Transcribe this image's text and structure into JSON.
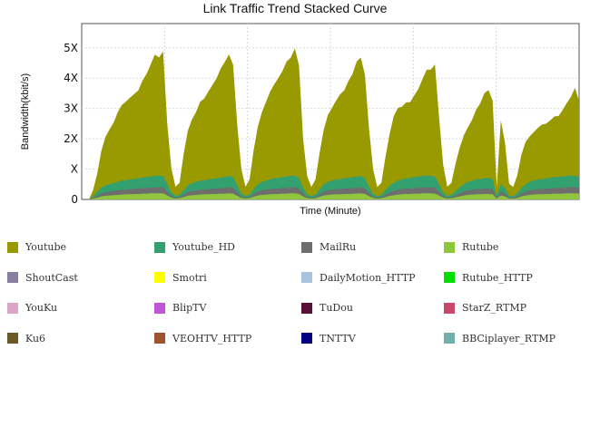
{
  "chart_data": {
    "type": "area",
    "title": "Link Traffic Trend Stacked Curve",
    "xlabel": "Time (Minute)",
    "ylabel": "Bandwidth(kbit/s)",
    "yticks": [
      "0",
      "X",
      "2X",
      "3X",
      "4X",
      "5X"
    ],
    "ylim": [
      0,
      5.8
    ],
    "grid": true,
    "legend_position": "bottom",
    "n_points": 120,
    "series": [
      {
        "name": "Youtube",
        "color": "#999900",
        "values": [
          0.0,
          0.2,
          0.6,
          1.2,
          1.6,
          1.8,
          2.0,
          2.3,
          2.5,
          2.6,
          2.7,
          2.8,
          2.9,
          3.2,
          3.4,
          3.7,
          4.0,
          3.9,
          4.1,
          2.0,
          0.8,
          0.3,
          0.4,
          1.2,
          1.8,
          2.1,
          2.3,
          2.6,
          2.7,
          2.9,
          3.1,
          3.3,
          3.6,
          3.8,
          4.0,
          3.7,
          2.0,
          0.8,
          0.3,
          0.5,
          1.3,
          1.9,
          2.3,
          2.6,
          2.9,
          3.1,
          3.3,
          3.5,
          3.8,
          3.9,
          4.2,
          3.7,
          1.6,
          0.6,
          0.3,
          0.5,
          1.2,
          1.8,
          2.2,
          2.4,
          2.6,
          2.8,
          2.9,
          3.2,
          3.4,
          3.8,
          3.9,
          3.4,
          1.9,
          0.8,
          0.3,
          0.4,
          1.1,
          1.7,
          2.2,
          2.4,
          2.4,
          2.5,
          2.5,
          2.7,
          2.9,
          3.2,
          3.5,
          3.5,
          3.7,
          2.2,
          0.9,
          0.3,
          0.4,
          0.9,
          1.3,
          1.6,
          1.8,
          2.0,
          2.3,
          2.5,
          2.8,
          2.9,
          2.6,
          0.3,
          2.1,
          1.5,
          0.4,
          0.3,
          0.6,
          1.1,
          1.4,
          1.5,
          1.6,
          1.7,
          1.8,
          1.8,
          1.9,
          2.0,
          2.0,
          2.2,
          2.4,
          2.6,
          2.9,
          2.5
        ]
      },
      {
        "name": "Youtube_HD",
        "color": "#33a06f",
        "values": [
          0.0,
          0.05,
          0.12,
          0.2,
          0.22,
          0.25,
          0.26,
          0.28,
          0.3,
          0.3,
          0.32,
          0.33,
          0.34,
          0.35,
          0.36,
          0.37,
          0.38,
          0.38,
          0.38,
          0.25,
          0.12,
          0.06,
          0.07,
          0.15,
          0.22,
          0.26,
          0.28,
          0.3,
          0.3,
          0.32,
          0.33,
          0.34,
          0.35,
          0.36,
          0.38,
          0.36,
          0.22,
          0.1,
          0.06,
          0.08,
          0.16,
          0.24,
          0.28,
          0.3,
          0.32,
          0.34,
          0.35,
          0.36,
          0.37,
          0.38,
          0.38,
          0.35,
          0.18,
          0.08,
          0.05,
          0.08,
          0.16,
          0.24,
          0.28,
          0.3,
          0.32,
          0.33,
          0.34,
          0.35,
          0.36,
          0.37,
          0.38,
          0.35,
          0.2,
          0.09,
          0.05,
          0.07,
          0.15,
          0.22,
          0.27,
          0.3,
          0.32,
          0.34,
          0.35,
          0.36,
          0.37,
          0.38,
          0.38,
          0.38,
          0.37,
          0.25,
          0.12,
          0.06,
          0.07,
          0.14,
          0.2,
          0.25,
          0.28,
          0.3,
          0.32,
          0.33,
          0.34,
          0.35,
          0.32,
          0.05,
          0.25,
          0.18,
          0.06,
          0.05,
          0.1,
          0.18,
          0.24,
          0.28,
          0.3,
          0.32,
          0.33,
          0.34,
          0.35,
          0.36,
          0.37,
          0.37,
          0.38,
          0.38,
          0.38,
          0.36
        ]
      },
      {
        "name": "MailRu",
        "color": "#6e6e6e",
        "values": [
          0.0,
          0.03,
          0.06,
          0.1,
          0.12,
          0.13,
          0.14,
          0.15,
          0.16,
          0.16,
          0.17,
          0.17,
          0.18,
          0.18,
          0.19,
          0.19,
          0.2,
          0.2,
          0.2,
          0.13,
          0.06,
          0.03,
          0.04,
          0.08,
          0.12,
          0.14,
          0.15,
          0.16,
          0.16,
          0.17,
          0.17,
          0.18,
          0.18,
          0.19,
          0.2,
          0.19,
          0.12,
          0.05,
          0.03,
          0.04,
          0.09,
          0.13,
          0.15,
          0.16,
          0.17,
          0.18,
          0.18,
          0.19,
          0.19,
          0.2,
          0.2,
          0.18,
          0.1,
          0.04,
          0.03,
          0.04,
          0.09,
          0.13,
          0.15,
          0.16,
          0.17,
          0.17,
          0.18,
          0.18,
          0.19,
          0.19,
          0.2,
          0.18,
          0.11,
          0.05,
          0.03,
          0.04,
          0.08,
          0.12,
          0.14,
          0.16,
          0.17,
          0.18,
          0.18,
          0.19,
          0.19,
          0.2,
          0.2,
          0.2,
          0.19,
          0.13,
          0.06,
          0.03,
          0.04,
          0.07,
          0.1,
          0.13,
          0.15,
          0.16,
          0.17,
          0.17,
          0.18,
          0.18,
          0.17,
          0.03,
          0.13,
          0.1,
          0.03,
          0.03,
          0.05,
          0.1,
          0.13,
          0.15,
          0.16,
          0.17,
          0.17,
          0.18,
          0.18,
          0.19,
          0.19,
          0.19,
          0.2,
          0.2,
          0.2,
          0.19
        ]
      },
      {
        "name": "Rutube",
        "color": "#8fc63b",
        "values": [
          0.0,
          0.03,
          0.06,
          0.1,
          0.12,
          0.13,
          0.14,
          0.15,
          0.16,
          0.17,
          0.17,
          0.18,
          0.18,
          0.19,
          0.19,
          0.2,
          0.2,
          0.2,
          0.2,
          0.13,
          0.06,
          0.03,
          0.04,
          0.08,
          0.12,
          0.14,
          0.15,
          0.16,
          0.17,
          0.17,
          0.18,
          0.18,
          0.19,
          0.19,
          0.2,
          0.19,
          0.12,
          0.05,
          0.03,
          0.04,
          0.09,
          0.13,
          0.15,
          0.16,
          0.17,
          0.18,
          0.18,
          0.19,
          0.19,
          0.2,
          0.2,
          0.18,
          0.1,
          0.04,
          0.03,
          0.04,
          0.09,
          0.13,
          0.15,
          0.16,
          0.17,
          0.17,
          0.18,
          0.18,
          0.19,
          0.19,
          0.2,
          0.18,
          0.11,
          0.05,
          0.03,
          0.04,
          0.08,
          0.12,
          0.14,
          0.16,
          0.17,
          0.18,
          0.18,
          0.19,
          0.19,
          0.2,
          0.2,
          0.2,
          0.19,
          0.13,
          0.06,
          0.03,
          0.04,
          0.07,
          0.1,
          0.13,
          0.15,
          0.16,
          0.17,
          0.17,
          0.18,
          0.18,
          0.17,
          0.03,
          0.13,
          0.1,
          0.03,
          0.03,
          0.05,
          0.1,
          0.13,
          0.15,
          0.16,
          0.17,
          0.17,
          0.18,
          0.18,
          0.19,
          0.19,
          0.19,
          0.2,
          0.2,
          0.2,
          0.19
        ]
      }
    ],
    "legend": [
      {
        "label": "Youtube",
        "color": "#999900"
      },
      {
        "label": "Youtube_HD",
        "color": "#33a06f"
      },
      {
        "label": "MailRu",
        "color": "#6e6e6e"
      },
      {
        "label": "Rutube",
        "color": "#8fc63b"
      },
      {
        "label": "ShoutCast",
        "color": "#8a7fa0"
      },
      {
        "label": "Smotri",
        "color": "#ffff00"
      },
      {
        "label": "DailyMotion_HTTP",
        "color": "#a9c4e0"
      },
      {
        "label": "Rutube_HTTP",
        "color": "#00e000"
      },
      {
        "label": "YouKu",
        "color": "#dca5c8"
      },
      {
        "label": "BlipTV",
        "color": "#bf55d6"
      },
      {
        "label": "TuDou",
        "color": "#5a0f36"
      },
      {
        "label": "StarZ_RTMP",
        "color": "#c9486a"
      },
      {
        "label": "Ku6",
        "color": "#6b5a24"
      },
      {
        "label": "VEOHTV_HTTP",
        "color": "#a0522d"
      },
      {
        "label": "TNTTV",
        "color": "#000080"
      },
      {
        "label": "BBCiplayer_RTMP",
        "color": "#6fb0a8"
      }
    ]
  }
}
